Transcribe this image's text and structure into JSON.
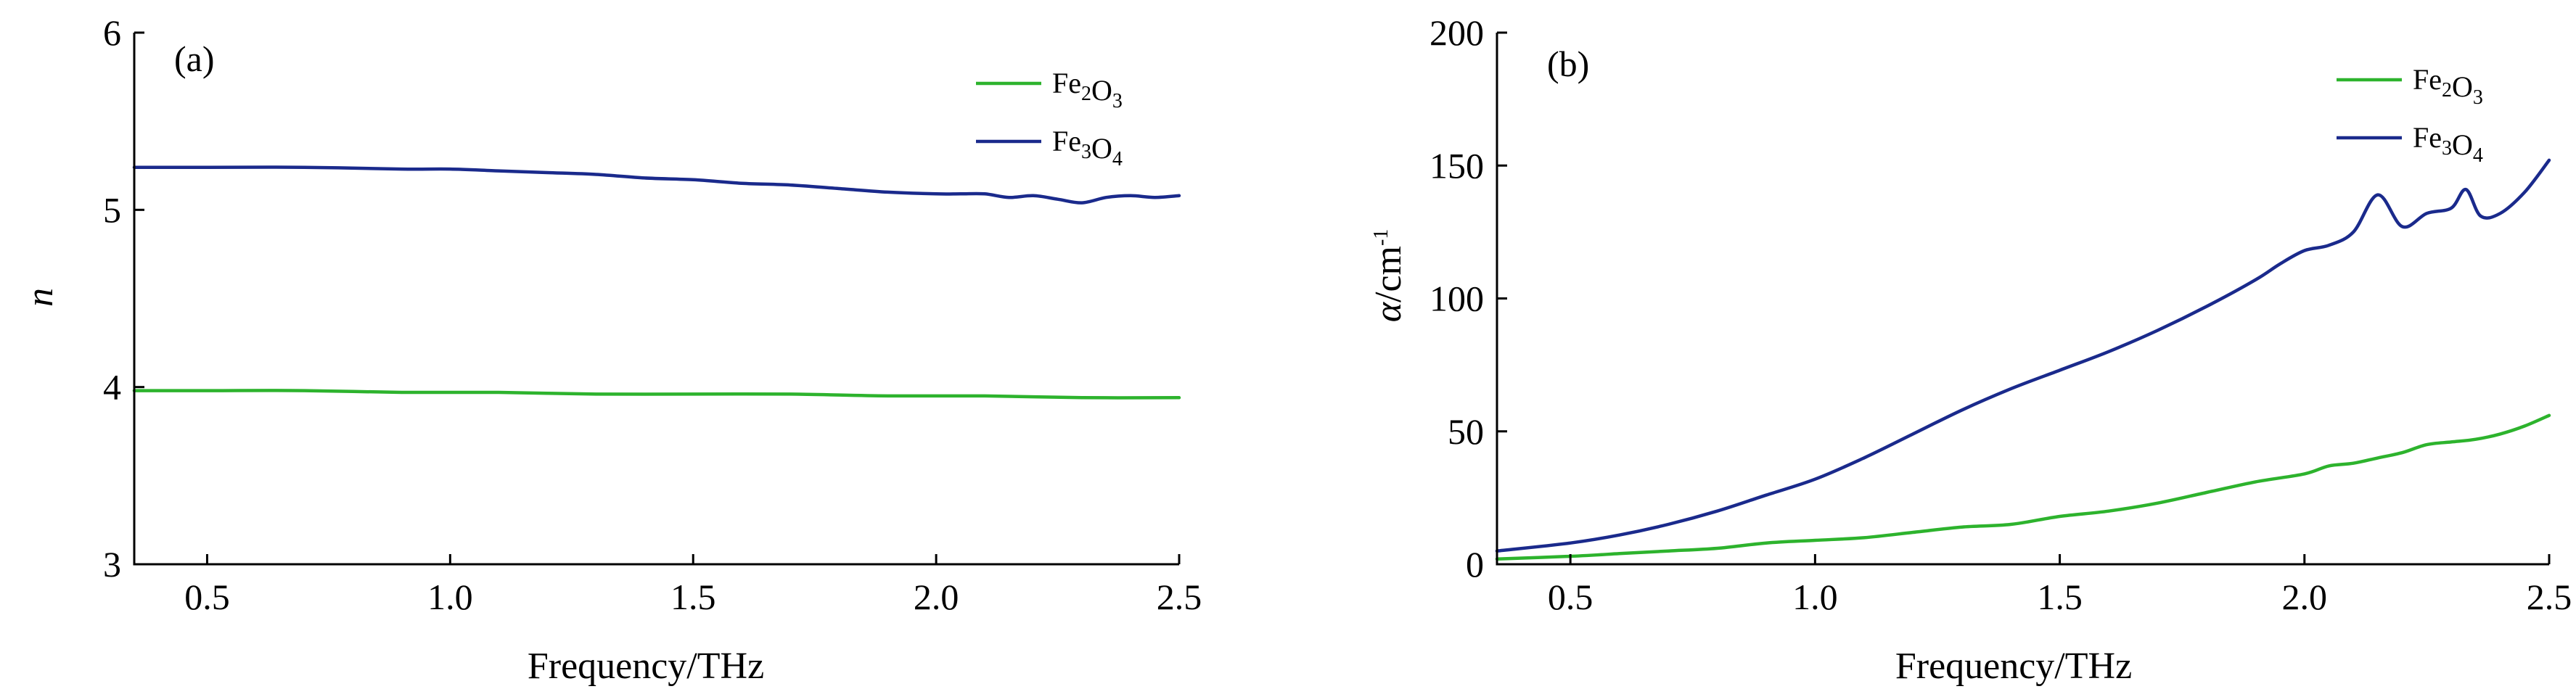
{
  "chart_data": [
    {
      "type": "line",
      "panel_label": "(a)",
      "xlabel": "Frequency/THz",
      "ylabel": "n",
      "xlim": [
        0.35,
        2.5
      ],
      "ylim": [
        3,
        6
      ],
      "xticks": [
        "0.5",
        "1.0",
        "1.5",
        "2.0",
        "2.5"
      ],
      "yticks": [
        "3",
        "4",
        "5",
        "6"
      ],
      "legend_position": "top-right",
      "series": [
        {
          "name": "Fe2O3",
          "color": "#2db32d",
          "x": [
            0.35,
            0.5,
            0.7,
            0.9,
            1.1,
            1.3,
            1.5,
            1.7,
            1.9,
            2.1,
            2.3,
            2.5
          ],
          "y": [
            3.98,
            3.98,
            3.98,
            3.97,
            3.97,
            3.96,
            3.96,
            3.96,
            3.95,
            3.95,
            3.94,
            3.94
          ]
        },
        {
          "name": "Fe3O4",
          "color": "#1a2a8c",
          "x": [
            0.35,
            0.5,
            0.7,
            0.9,
            1.0,
            1.1,
            1.2,
            1.3,
            1.4,
            1.5,
            1.6,
            1.7,
            1.8,
            1.9,
            2.0,
            2.05,
            2.1,
            2.15,
            2.2,
            2.25,
            2.3,
            2.35,
            2.4,
            2.45,
            2.5
          ],
          "y": [
            5.24,
            5.24,
            5.24,
            5.23,
            5.23,
            5.22,
            5.21,
            5.2,
            5.18,
            5.17,
            5.15,
            5.14,
            5.12,
            5.1,
            5.09,
            5.09,
            5.09,
            5.07,
            5.08,
            5.06,
            5.04,
            5.07,
            5.08,
            5.07,
            5.08
          ]
        }
      ]
    },
    {
      "type": "line",
      "panel_label": "(b)",
      "xlabel": "Frequency/THz",
      "ylabel": "α/cm-1",
      "xlim": [
        0.35,
        2.5
      ],
      "ylim": [
        0,
        200
      ],
      "xticks": [
        "0.5",
        "1.0",
        "1.5",
        "2.0",
        "2.5"
      ],
      "yticks": [
        "0",
        "50",
        "100",
        "150",
        "200"
      ],
      "legend_position": "top-right",
      "series": [
        {
          "name": "Fe2O3",
          "color": "#2db32d",
          "x": [
            0.35,
            0.5,
            0.6,
            0.7,
            0.8,
            0.9,
            1.0,
            1.1,
            1.2,
            1.3,
            1.4,
            1.5,
            1.6,
            1.7,
            1.8,
            1.9,
            2.0,
            2.05,
            2.1,
            2.15,
            2.2,
            2.25,
            2.3,
            2.35,
            2.4,
            2.45,
            2.5
          ],
          "y": [
            2,
            3,
            4,
            5,
            6,
            8,
            9,
            10,
            12,
            14,
            15,
            18,
            20,
            23,
            27,
            31,
            34,
            37,
            38,
            40,
            42,
            45,
            46,
            47,
            49,
            52,
            56
          ]
        },
        {
          "name": "Fe3O4",
          "color": "#1a2a8c",
          "x": [
            0.35,
            0.5,
            0.6,
            0.7,
            0.8,
            0.9,
            1.0,
            1.1,
            1.2,
            1.3,
            1.4,
            1.5,
            1.6,
            1.7,
            1.8,
            1.9,
            1.95,
            2.0,
            2.05,
            2.1,
            2.15,
            2.2,
            2.25,
            2.3,
            2.33,
            2.36,
            2.4,
            2.45,
            2.5
          ],
          "y": [
            5,
            8,
            11,
            15,
            20,
            26,
            32,
            40,
            49,
            58,
            66,
            73,
            80,
            88,
            97,
            107,
            113,
            118,
            120,
            125,
            139,
            127,
            132,
            134,
            141,
            131,
            132,
            140,
            152
          ]
        }
      ]
    }
  ]
}
